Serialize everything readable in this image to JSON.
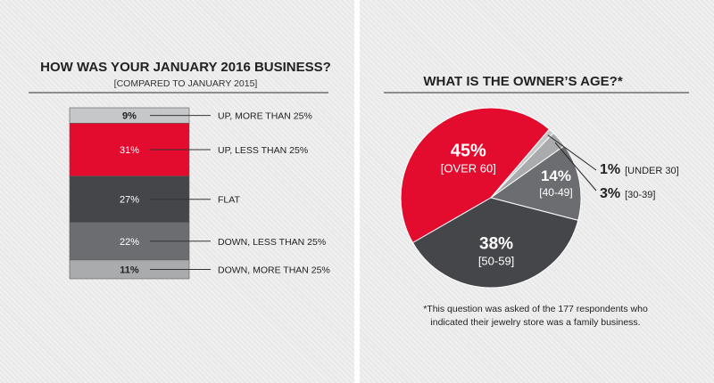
{
  "colors": {
    "red": "#e30b2e",
    "dark": "#45464a",
    "medium": "#6b6d70",
    "light": "#a9abad",
    "lightest": "#c6c7c9",
    "text": "#222222"
  },
  "left": {
    "title": "HOW WAS YOUR JANUARY 2016 BUSINESS?",
    "subtitle": "[COMPARED TO JANUARY 2015]"
  },
  "right": {
    "title": "WHAT IS THE OWNER’S AGE?*",
    "footnote_line1": "*This question was asked of the 177 respondents who",
    "footnote_line2": "indicated their jewelry store was a family business."
  },
  "chart_data": [
    {
      "type": "bar",
      "subtype": "stacked-100",
      "title": "HOW WAS YOUR JANUARY 2016 BUSINESS?",
      "subtitle": "[COMPARED TO JANUARY 2015]",
      "segments": [
        {
          "value": 9,
          "value_label": "9%",
          "label": "UP, MORE THAN 25%",
          "color": "#c6c7c9"
        },
        {
          "value": 31,
          "value_label": "31%",
          "label": "UP, LESS THAN 25%",
          "color": "#e30b2e"
        },
        {
          "value": 27,
          "value_label": "27%",
          "label": "FLAT",
          "color": "#45464a"
        },
        {
          "value": 22,
          "value_label": "22%",
          "label": "DOWN, LESS THAN 25%",
          "color": "#6b6d70"
        },
        {
          "value": 11,
          "value_label": "11%",
          "label": "DOWN, MORE THAN 25%",
          "color": "#a9abad"
        }
      ]
    },
    {
      "type": "pie",
      "title": "WHAT IS THE OWNER’S AGE?*",
      "slices": [
        {
          "value": 45,
          "value_label": "45%",
          "category": "[OVER 60]",
          "color": "#e30b2e"
        },
        {
          "value": 1,
          "value_label": "1%",
          "category": "[UNDER 30]",
          "color": "#c6c7c9"
        },
        {
          "value": 3,
          "value_label": "3%",
          "category": "[30-39]",
          "color": "#a9abad"
        },
        {
          "value": 14,
          "value_label": "14%",
          "category": "[40-49]",
          "color": "#6b6d70"
        },
        {
          "value": 38,
          "value_label": "38%",
          "category": "[50-59]",
          "color": "#45464a"
        }
      ],
      "footnote": "*This question was asked of the 177 respondents who indicated their jewelry store was a family business."
    }
  ]
}
